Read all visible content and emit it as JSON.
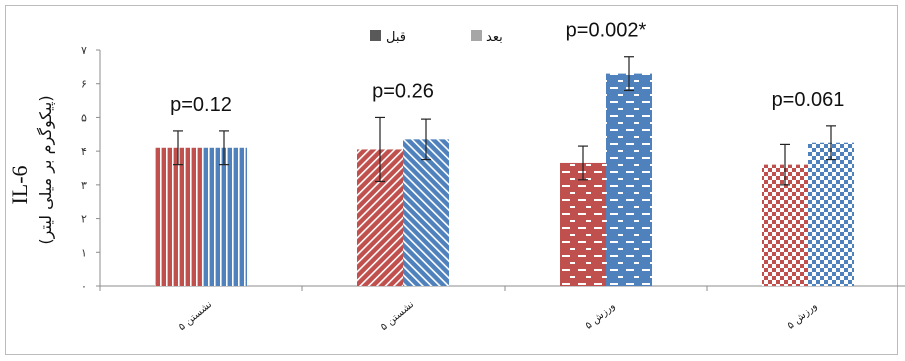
{
  "chart_data": {
    "type": "bar",
    "ylabel_main": "IL-6",
    "ylabel_unit": "(پیکوگرم بر میلی لیتر)",
    "ylim": [
      0,
      7
    ],
    "yticks": [
      "۰",
      "۱",
      "۲",
      "۳",
      "۴",
      "۵",
      "۶",
      "۷"
    ],
    "grid": false,
    "legend_position": "top-center",
    "categories": [
      "نشستن ۵",
      "نشستن ۵",
      "ورزش ۵",
      "ورزش ۵"
    ],
    "series": [
      {
        "name": "قبل",
        "values": [
          4.1,
          4.05,
          3.65,
          3.6
        ],
        "errors": [
          0.5,
          0.95,
          0.5,
          0.6
        ],
        "color": "#c0504d"
      },
      {
        "name": "بعد",
        "values": [
          4.1,
          4.35,
          6.3,
          4.25
        ],
        "errors": [
          0.5,
          0.6,
          0.5,
          0.5
        ],
        "color": "#4f81bd"
      }
    ],
    "pvalues": [
      "p=0.12",
      "p=0.26",
      "p=0.002*",
      "p=0.061"
    ],
    "legend": [
      {
        "label": "بعد",
        "swatch_color": "#a6a6a6"
      },
      {
        "label": "قبل",
        "swatch_color": "#595959"
      }
    ]
  }
}
